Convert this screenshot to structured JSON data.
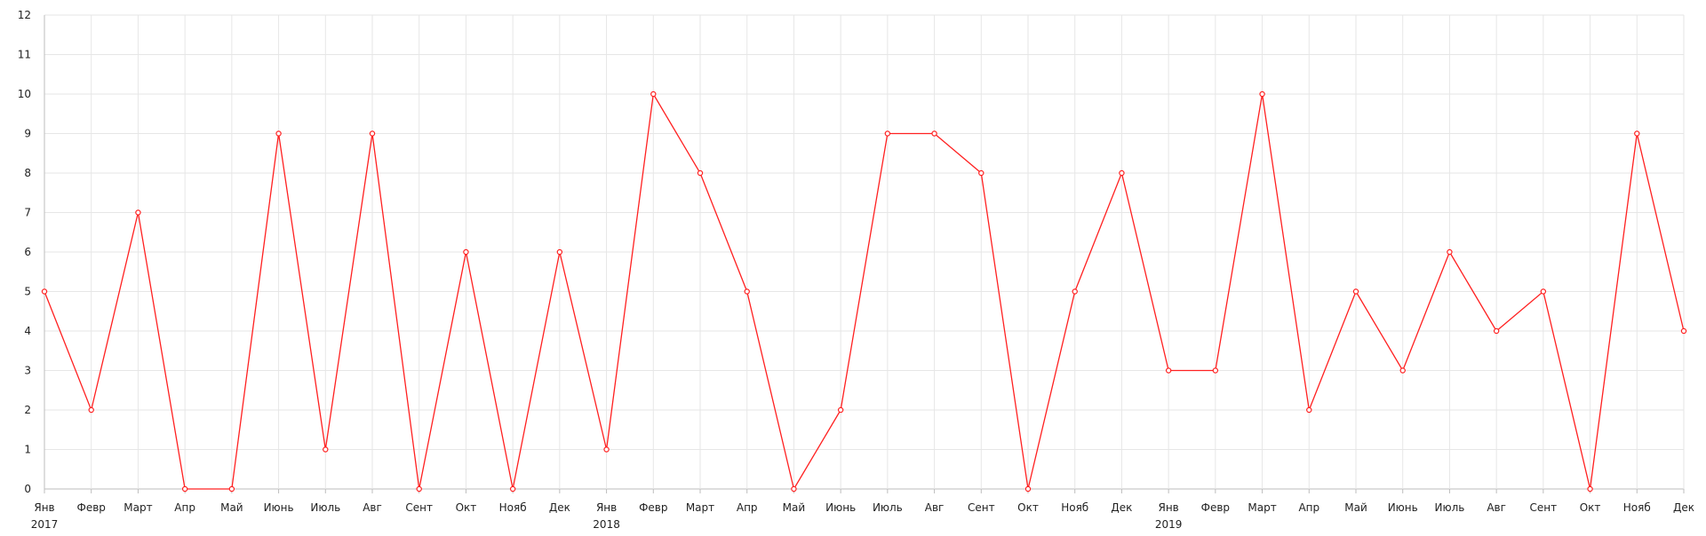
{
  "chart_data": {
    "type": "line",
    "title": "",
    "xlabel": "",
    "ylabel": "",
    "ylim": [
      0,
      12
    ],
    "y_ticks": [
      0,
      1,
      2,
      3,
      4,
      5,
      6,
      7,
      8,
      9,
      10,
      11,
      12
    ],
    "grid": true,
    "legend": "none",
    "x": [
      "Янв",
      "Февр",
      "Март",
      "Апр",
      "Май",
      "Июнь",
      "Июль",
      "Авг",
      "Сент",
      "Окт",
      "Нояб",
      "Дек",
      "Янв",
      "Февр",
      "Март",
      "Апр",
      "Май",
      "Июнь",
      "Июль",
      "Авг",
      "Сент",
      "Окт",
      "Нояб",
      "Дек",
      "Янв",
      "Февр",
      "Март",
      "Апр",
      "Май",
      "Июнь",
      "Июль",
      "Авг",
      "Сент",
      "Окт",
      "Нояб",
      "Дек"
    ],
    "year_labels": [
      {
        "index": 0,
        "label": "2017"
      },
      {
        "index": 12,
        "label": "2018"
      },
      {
        "index": 24,
        "label": "2019"
      }
    ],
    "series": [
      {
        "values": [
          5,
          2,
          7,
          0,
          0,
          9,
          1,
          9,
          0,
          6,
          0,
          6,
          1,
          10,
          8,
          5,
          0,
          2,
          9,
          9,
          8,
          0,
          5,
          8,
          3,
          3,
          10,
          2,
          5,
          3,
          6,
          4,
          5,
          0,
          9,
          4
        ],
        "color": "#ff2020"
      }
    ],
    "colors": {
      "grid": "#e6e6e6",
      "axis": "#bdbdbd",
      "marker_fill": "#ffffff"
    }
  }
}
